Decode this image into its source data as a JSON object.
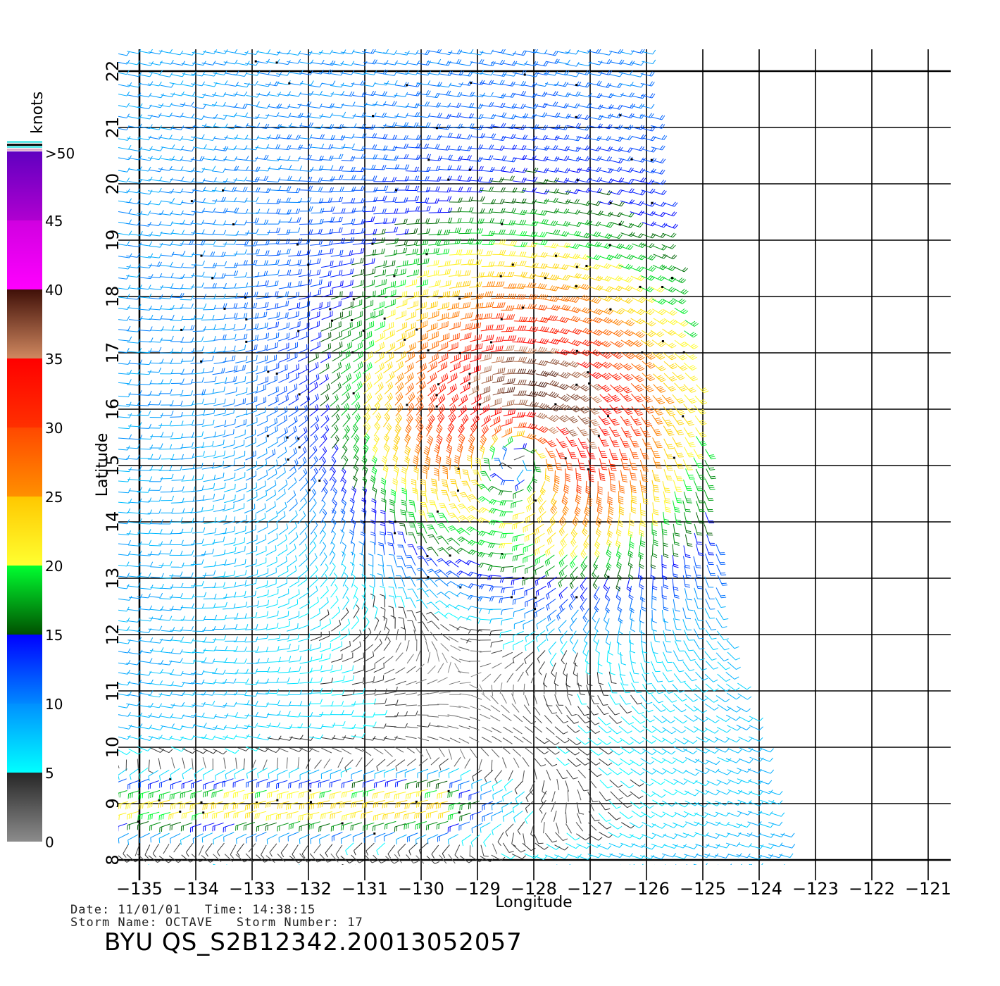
{
  "colorbar": {
    "unit": "knots",
    "labels": [
      ">50",
      "45",
      "40",
      "35",
      "30",
      "25",
      "20",
      "15",
      "10",
      "5",
      "0"
    ],
    "bands": [
      {
        "from": 0,
        "to": 5,
        "colors": [
          "#8c8c8c",
          "#262626"
        ]
      },
      {
        "from": 5,
        "to": 10,
        "colors": [
          "#00ffff",
          "#0090ff"
        ]
      },
      {
        "from": 10,
        "to": 15,
        "colors": [
          "#0088ff",
          "#0000ff"
        ]
      },
      {
        "from": 15,
        "to": 20,
        "colors": [
          "#005000",
          "#00ff30"
        ]
      },
      {
        "from": 20,
        "to": 25,
        "colors": [
          "#ffff30",
          "#ffc800"
        ]
      },
      {
        "from": 25,
        "to": 30,
        "colors": [
          "#ff9000",
          "#ff4800"
        ]
      },
      {
        "from": 30,
        "to": 35,
        "colors": [
          "#ff3000",
          "#ff0000"
        ]
      },
      {
        "from": 35,
        "to": 40,
        "colors": [
          "#d08860",
          "#401008"
        ]
      },
      {
        "from": 40,
        "to": 45,
        "colors": [
          "#ff00ff",
          "#d000e0"
        ]
      },
      {
        "from": 45,
        "to": 50,
        "colors": [
          "#b000d0",
          "#6000c0"
        ]
      }
    ]
  },
  "axes": {
    "xlabel": "Longitude",
    "ylabel": "Latitude",
    "lon_range": [
      -135,
      -121
    ],
    "lat_range": [
      8,
      22
    ],
    "lon_ticks": [
      "-135",
      "-134",
      "-133",
      "-132",
      "-131",
      "-130",
      "-129",
      "-128",
      "-127",
      "-126",
      "-125",
      "-124",
      "-123",
      "-122",
      "-121"
    ],
    "lat_ticks": [
      "8",
      "9",
      "10",
      "11",
      "12",
      "13",
      "14",
      "15",
      "16",
      "17",
      "18",
      "19",
      "20",
      "21",
      "22"
    ],
    "grid": true
  },
  "info": {
    "line1": "Date: 11/01/01   Time: 14:38:15",
    "line2": "Storm Name: OCTAVE   Storm Number: 17",
    "file_id": "BYU QS_S2B12342.20013052057"
  },
  "field": {
    "type": "wind-barbs",
    "storm_name": "OCTAVE",
    "swath_east_edge_lon": [
      {
        "lat": 22,
        "lon": -126.0
      },
      {
        "lat": 19,
        "lon": -125.6
      },
      {
        "lat": 17,
        "lon": -125.2
      },
      {
        "lat": 15,
        "lon": -124.9
      },
      {
        "lat": 12,
        "lon": -124.6
      },
      {
        "lat": 10,
        "lon": -124.0
      },
      {
        "lat": 8,
        "lon": -123.5
      }
    ],
    "wind_centers": [
      {
        "name": "storm-center",
        "lat": 15.2,
        "lon": -128.3,
        "peak_knots": 33,
        "circulation": "cyclonic"
      },
      {
        "name": "southern-band",
        "lat": 9.0,
        "lon": -132.5,
        "peak_knots": 28
      }
    ]
  }
}
